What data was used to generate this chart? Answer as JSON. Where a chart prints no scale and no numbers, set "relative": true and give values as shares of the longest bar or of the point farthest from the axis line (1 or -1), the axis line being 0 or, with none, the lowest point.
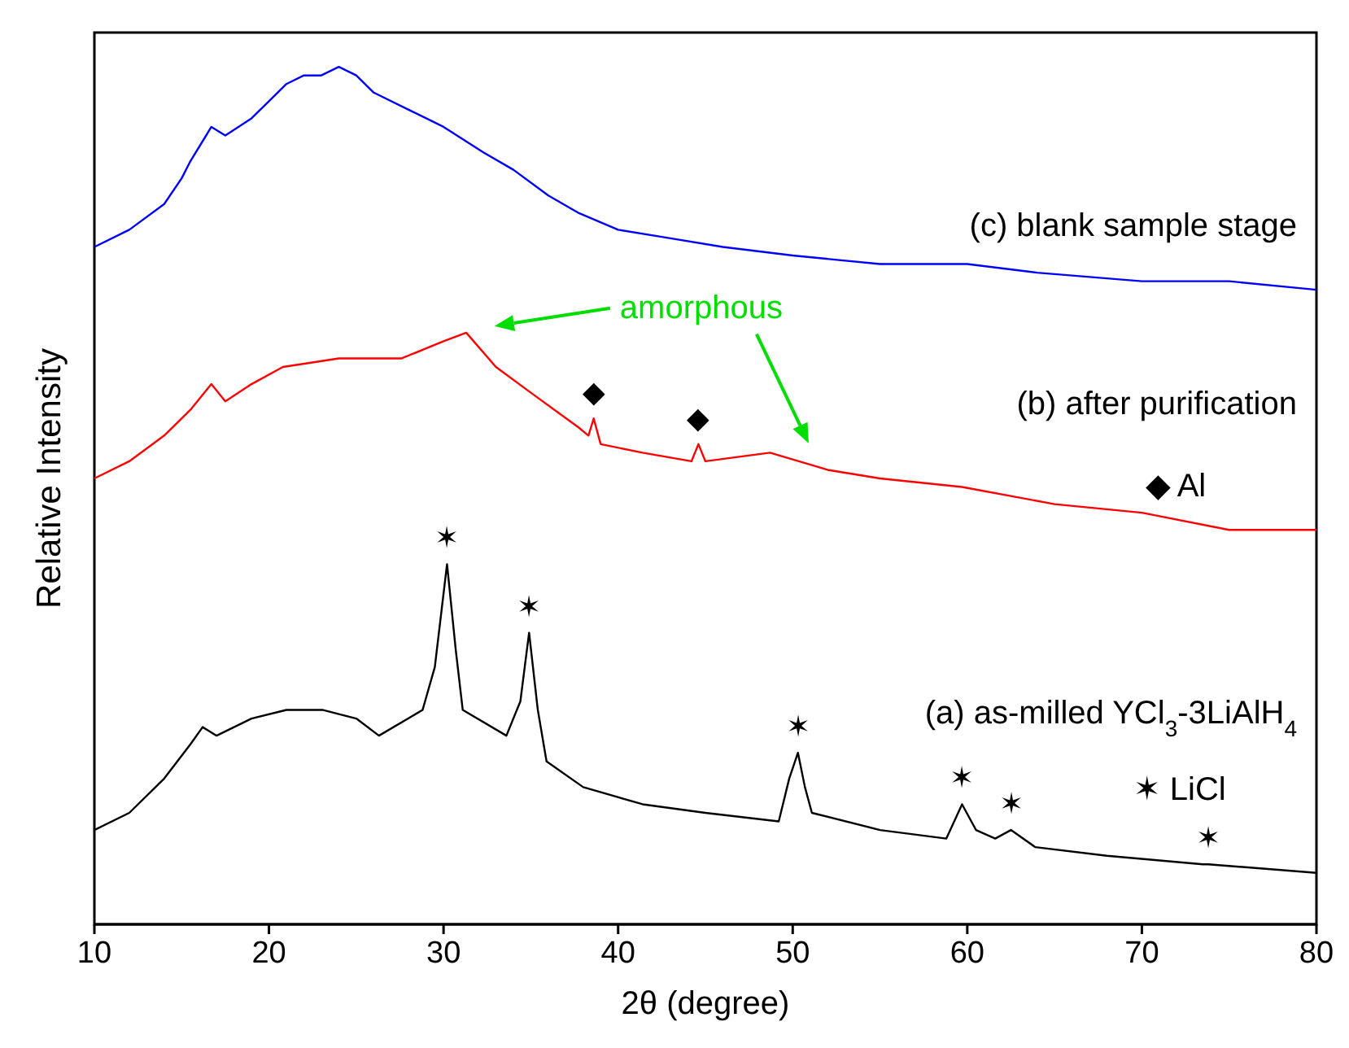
{
  "chart_data": {
    "type": "line",
    "relative": true,
    "xlabel": "2θ (degree)",
    "ylabel": "Relative Intensity",
    "xlim": [
      10,
      80
    ],
    "xticks": [
      10,
      20,
      30,
      40,
      50,
      60,
      70,
      80
    ],
    "marker": "none",
    "line_style": "solid",
    "series": [
      {
        "name": "(c) blank sample stage",
        "color": "#0000ff",
        "x": [
          10,
          12,
          14,
          15,
          15.5,
          16.7,
          17.5,
          19,
          20,
          21,
          22,
          23,
          24,
          25,
          26,
          28,
          30,
          32.3,
          34,
          36,
          37.7,
          40,
          43,
          46,
          50,
          55,
          60,
          64,
          70,
          75,
          80
        ],
        "values": [
          0.79,
          0.81,
          0.84,
          0.87,
          0.89,
          0.93,
          0.92,
          0.94,
          0.96,
          0.98,
          0.99,
          0.99,
          1.0,
          0.99,
          0.97,
          0.95,
          0.93,
          0.9,
          0.88,
          0.85,
          0.83,
          0.81,
          0.8,
          0.79,
          0.78,
          0.77,
          0.77,
          0.76,
          0.75,
          0.75,
          0.74
        ]
      },
      {
        "name": "(b) after purification",
        "color": "#ff0000",
        "x": [
          10,
          12,
          14,
          15.5,
          16.7,
          17.5,
          19,
          20.8,
          24,
          27.6,
          30,
          31.3,
          33,
          35,
          37.7,
          38.3,
          38.6,
          39,
          41.4,
          44.2,
          44.6,
          45,
          48.7,
          52,
          55,
          59.7,
          65,
          70,
          75,
          80
        ],
        "values": [
          0.52,
          0.54,
          0.57,
          0.6,
          0.63,
          0.61,
          0.63,
          0.65,
          0.66,
          0.66,
          0.68,
          0.69,
          0.65,
          0.62,
          0.58,
          0.57,
          0.59,
          0.56,
          0.55,
          0.54,
          0.56,
          0.54,
          0.55,
          0.53,
          0.52,
          0.51,
          0.49,
          0.48,
          0.46,
          0.46
        ]
      },
      {
        "name": "(a) as-milled YCl$_{3}$-3LiAlH$_{4}$",
        "color": "#000000",
        "x": [
          10,
          12,
          14,
          15.5,
          16.2,
          17,
          19,
          21,
          23.1,
          25,
          26.3,
          28.8,
          29.5,
          30.2,
          30.7,
          31.1,
          33.6,
          34.4,
          34.9,
          35.4,
          35.9,
          38,
          41.4,
          45,
          49.2,
          49.8,
          50.3,
          50.7,
          51.1,
          55,
          58.8,
          59.7,
          60.5,
          61.6,
          62.5,
          63.9,
          68,
          73.5,
          73.8,
          80
        ],
        "values": [
          0.11,
          0.13,
          0.17,
          0.21,
          0.23,
          0.22,
          0.24,
          0.25,
          0.25,
          0.24,
          0.22,
          0.25,
          0.3,
          0.42,
          0.32,
          0.25,
          0.22,
          0.26,
          0.34,
          0.25,
          0.19,
          0.16,
          0.14,
          0.13,
          0.12,
          0.17,
          0.2,
          0.16,
          0.13,
          0.11,
          0.1,
          0.14,
          0.11,
          0.1,
          0.11,
          0.09,
          0.08,
          0.07,
          0.07,
          0.06
        ]
      }
    ],
    "annotations": [
      "◆ Al",
      "✶ LiCl",
      "amorphous",
      {
        "text": "◆",
        "x": 38.6,
        "y": 0.59
      },
      {
        "text": "◆",
        "x": 44.6,
        "y": 0.56
      },
      {
        "text": "✶",
        "x": 30.2,
        "y": 0.42
      },
      {
        "text": "✶",
        "x": 34.9,
        "y": 0.34
      },
      {
        "text": "✶",
        "x": 50.3,
        "y": 0.2
      },
      {
        "text": "✶",
        "x": 59.7,
        "y": 0.14
      },
      {
        "text": "✶",
        "x": 62.5,
        "y": 0.11
      },
      {
        "text": "✶",
        "x": 73.8,
        "y": 0.07
      }
    ]
  }
}
